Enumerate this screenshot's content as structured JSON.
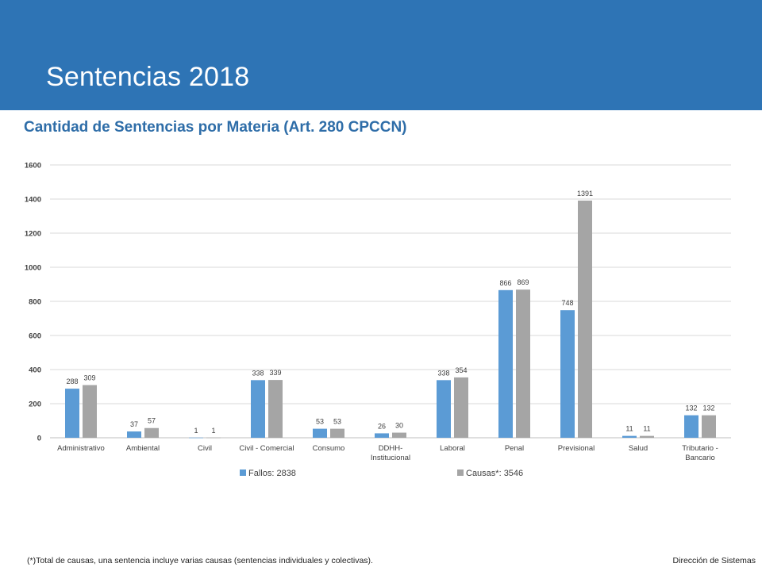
{
  "banner": {
    "title": "Sentencias 2018",
    "color": "#2e74b5"
  },
  "subtitle": "Cantidad de Sentencias por Materia (Art. 280 CPCCN)",
  "footnote": "(*)Total de causas, una sentencia incluye varias causas (sentencias individuales y colectivas).",
  "footer_right": "Dirección de Sistemas",
  "chart_data": {
    "type": "bar",
    "categories": [
      [
        "Administrativo"
      ],
      [
        "Ambiental"
      ],
      [
        "Civil"
      ],
      [
        "Civil - Comercial"
      ],
      [
        "Consumo"
      ],
      [
        "DDHH-",
        "Institucional"
      ],
      [
        "Laboral"
      ],
      [
        "Penal"
      ],
      [
        "Previsional"
      ],
      [
        "Salud"
      ],
      [
        "Tributario -",
        "Bancario"
      ]
    ],
    "series": [
      {
        "name": "Fallos: 2838",
        "color": "#5b9bd5",
        "values": [
          288,
          37,
          1,
          338,
          53,
          26,
          338,
          866,
          748,
          11,
          132
        ]
      },
      {
        "name": "Causas*: 3546",
        "color": "#a5a5a5",
        "values": [
          309,
          57,
          1,
          339,
          53,
          30,
          354,
          869,
          1391,
          11,
          132
        ]
      }
    ],
    "ylim": [
      0,
      1600
    ],
    "yticks": [
      0,
      200,
      400,
      600,
      800,
      1000,
      1200,
      1400,
      1600
    ],
    "grid": true,
    "legend": "bottom"
  }
}
